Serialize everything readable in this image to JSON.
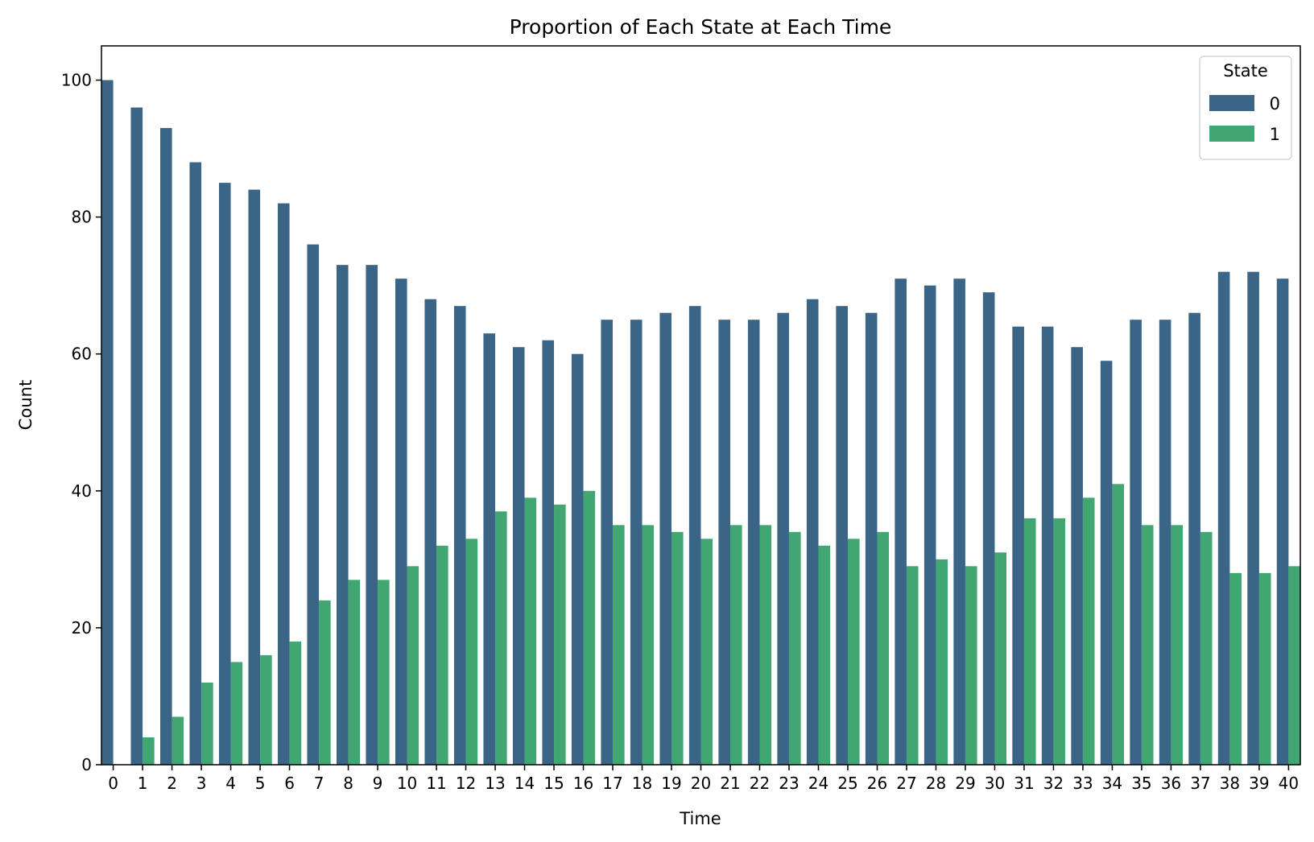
{
  "chart_data": {
    "type": "bar",
    "title": "Proportion of Each State at Each Time",
    "xlabel": "Time",
    "ylabel": "Count",
    "ylim": [
      0,
      105
    ],
    "yticks": [
      0,
      20,
      40,
      60,
      80,
      100
    ],
    "grid": false,
    "legend": {
      "title": "State",
      "placement": "top-right"
    },
    "categories": [
      "0",
      "1",
      "2",
      "3",
      "4",
      "5",
      "6",
      "7",
      "8",
      "9",
      "10",
      "11",
      "12",
      "13",
      "14",
      "15",
      "16",
      "17",
      "18",
      "19",
      "20",
      "21",
      "22",
      "23",
      "24",
      "25",
      "26",
      "27",
      "28",
      "29",
      "30",
      "31",
      "32",
      "33",
      "34",
      "35",
      "36",
      "37",
      "38",
      "39",
      "40"
    ],
    "series": [
      {
        "name": "0",
        "color": "#3a6587",
        "values": [
          100,
          96,
          93,
          88,
          85,
          84,
          82,
          76,
          73,
          73,
          71,
          68,
          67,
          63,
          61,
          62,
          60,
          65,
          65,
          66,
          67,
          65,
          65,
          66,
          68,
          67,
          66,
          71,
          70,
          71,
          69,
          64,
          64,
          61,
          59,
          65,
          65,
          66,
          72,
          72,
          71
        ]
      },
      {
        "name": "1",
        "color": "#42a673",
        "values": [
          0,
          4,
          7,
          12,
          15,
          16,
          18,
          24,
          27,
          27,
          29,
          32,
          33,
          37,
          39,
          38,
          40,
          35,
          35,
          34,
          33,
          35,
          35,
          34,
          32,
          33,
          34,
          29,
          30,
          29,
          31,
          36,
          36,
          39,
          41,
          35,
          35,
          34,
          28,
          28,
          29
        ]
      }
    ]
  }
}
